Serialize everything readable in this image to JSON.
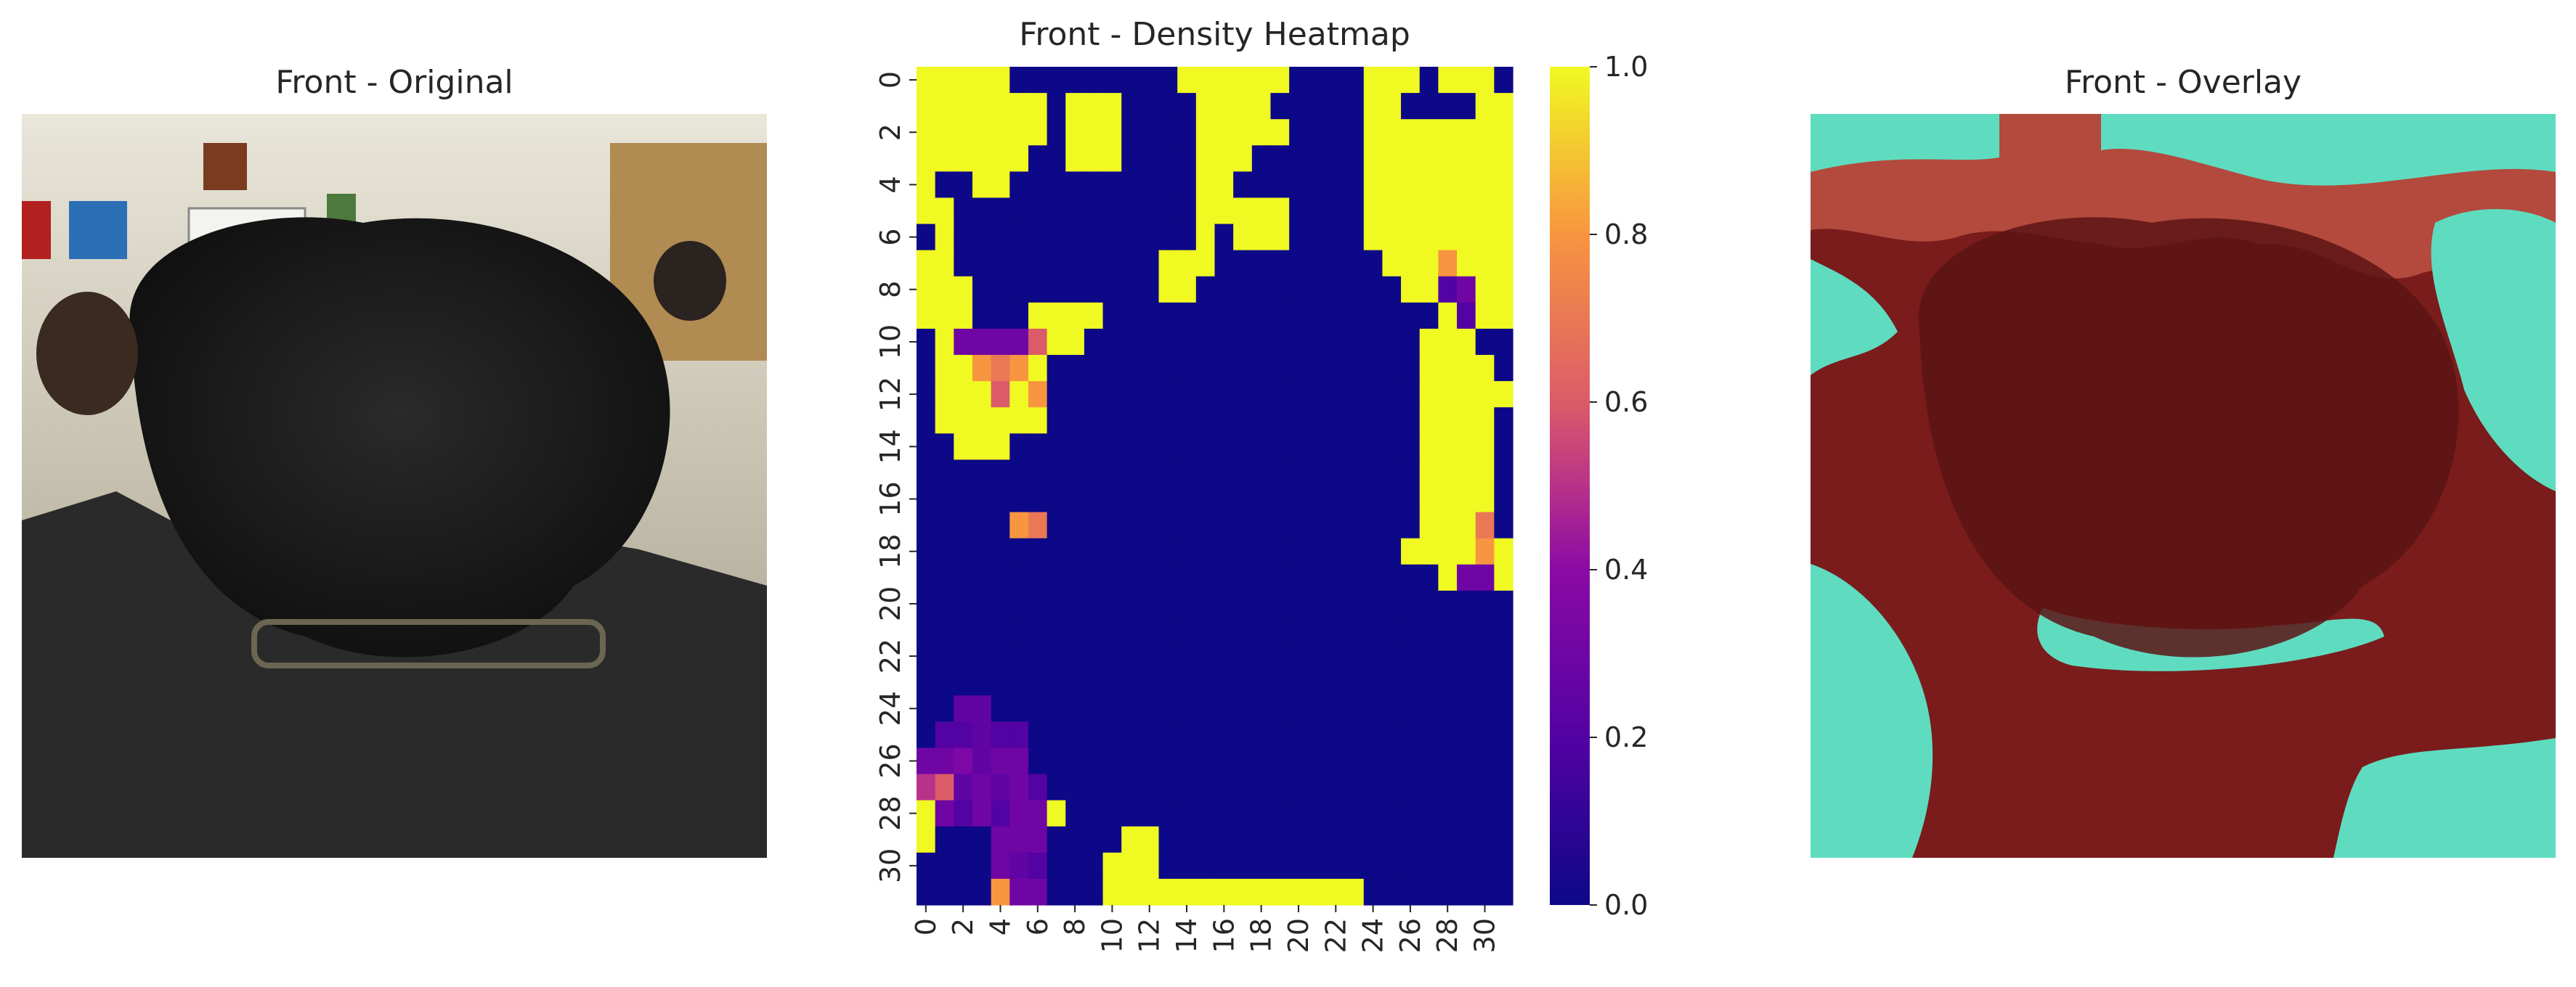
{
  "panels": {
    "original": {
      "title": "Front - Original"
    },
    "heatmap": {
      "title": "Front - Density Heatmap"
    },
    "overlay": {
      "title": "Front - Overlay"
    }
  },
  "chart_data": {
    "type": "heatmap",
    "title": "Front - Density Heatmap",
    "rows": 32,
    "cols": 32,
    "colormap": "plasma",
    "x_tick_labels": [
      "0",
      "2",
      "4",
      "6",
      "8",
      "10",
      "12",
      "14",
      "16",
      "18",
      "20",
      "22",
      "24",
      "26",
      "28",
      "30"
    ],
    "y_tick_labels": [
      "0",
      "2",
      "4",
      "6",
      "8",
      "10",
      "12",
      "14",
      "16",
      "18",
      "20",
      "22",
      "24",
      "26",
      "28",
      "30"
    ],
    "colorbar_range": [
      0.0,
      1.0
    ],
    "colorbar_ticks": [
      "0.0",
      "0.2",
      "0.4",
      "0.6",
      "0.8",
      "1.0"
    ],
    "values": [
      [
        1,
        1,
        1,
        1,
        1,
        0,
        0,
        0,
        0,
        0,
        0,
        0,
        0,
        0,
        1,
        1,
        1,
        1,
        1,
        1,
        0,
        0,
        0,
        0,
        1,
        1,
        1,
        0,
        1,
        1,
        1,
        0
      ],
      [
        1,
        1,
        1,
        1,
        1,
        1,
        1,
        0,
        1,
        1,
        1,
        0,
        0,
        0,
        0,
        1,
        1,
        1,
        1,
        0,
        0,
        0,
        0,
        0,
        1,
        1,
        0,
        0,
        0,
        0,
        1,
        1
      ],
      [
        1,
        1,
        1,
        1,
        1,
        1,
        1,
        0,
        1,
        1,
        1,
        0,
        0,
        0,
        0,
        1,
        1,
        1,
        1,
        1,
        0,
        0,
        0,
        0,
        1,
        1,
        1,
        1,
        1,
        1,
        1,
        1
      ],
      [
        1,
        1,
        1,
        1,
        1,
        1,
        0,
        0,
        1,
        1,
        1,
        0,
        0,
        0,
        0,
        1,
        1,
        1,
        0,
        0,
        0,
        0,
        0,
        0,
        1,
        1,
        1,
        1,
        1,
        1,
        1,
        1
      ],
      [
        1,
        0,
        0,
        1,
        1,
        0,
        0,
        0,
        0,
        0,
        0,
        0,
        0,
        0,
        0,
        1,
        1,
        0,
        0,
        0,
        0,
        0,
        0,
        0,
        1,
        1,
        1,
        1,
        1,
        1,
        1,
        1
      ],
      [
        1,
        1,
        0,
        0,
        0,
        0,
        0,
        0,
        0,
        0,
        0,
        0,
        0,
        0,
        0,
        1,
        1,
        1,
        1,
        1,
        0,
        0,
        0,
        0,
        1,
        1,
        1,
        1,
        1,
        1,
        1,
        1
      ],
      [
        0,
        1,
        0,
        0,
        0,
        0,
        0,
        0,
        0,
        0,
        0,
        0,
        0,
        0,
        0,
        1,
        0,
        1,
        1,
        1,
        0,
        0,
        0,
        0,
        1,
        1,
        1,
        1,
        1,
        1,
        1,
        1
      ],
      [
        1,
        1,
        0,
        0,
        0,
        0,
        0,
        0,
        0,
        0,
        0,
        0,
        0,
        1,
        1,
        1,
        0,
        0,
        0,
        0,
        0,
        0,
        0,
        0,
        0,
        1,
        1,
        1,
        0.8,
        1,
        1,
        1
      ],
      [
        1,
        1,
        1,
        0,
        0,
        0,
        0,
        0,
        0,
        0,
        0,
        0,
        0,
        1,
        1,
        0,
        0,
        0,
        0,
        0,
        0,
        0,
        0,
        0,
        0,
        0,
        1,
        1,
        0.2,
        0.3,
        1,
        1
      ],
      [
        1,
        1,
        1,
        0,
        0,
        0,
        1,
        1,
        1,
        1,
        0,
        0,
        0,
        0,
        0,
        0,
        0,
        0,
        0,
        0,
        0,
        0,
        0,
        0,
        0,
        0,
        0,
        0,
        1,
        0.2,
        1,
        1
      ],
      [
        0,
        1,
        0.3,
        0.3,
        0.3,
        0.3,
        0.6,
        1,
        1,
        0,
        0,
        0,
        0,
        0,
        0,
        0,
        0,
        0,
        0,
        0,
        0,
        0,
        0,
        0,
        0,
        0,
        0,
        1,
        1,
        1,
        0,
        0
      ],
      [
        0,
        1,
        1,
        0.8,
        0.7,
        0.8,
        1,
        0,
        0,
        0,
        0,
        0,
        0,
        0,
        0,
        0,
        0,
        0,
        0,
        0,
        0,
        0,
        0,
        0,
        0,
        0,
        0,
        1,
        1,
        1,
        1,
        0
      ],
      [
        0,
        1,
        1,
        1,
        0.6,
        1,
        0.8,
        0,
        0,
        0,
        0,
        0,
        0,
        0,
        0,
        0,
        0,
        0,
        0,
        0,
        0,
        0,
        0,
        0,
        0,
        0,
        0,
        1,
        1,
        1,
        1,
        1
      ],
      [
        0,
        1,
        1,
        1,
        1,
        1,
        1,
        0,
        0,
        0,
        0,
        0,
        0,
        0,
        0,
        0,
        0,
        0,
        0,
        0,
        0,
        0,
        0,
        0,
        0,
        0,
        0,
        1,
        1,
        1,
        1,
        0
      ],
      [
        0,
        0,
        1,
        1,
        1,
        0,
        0,
        0,
        0,
        0,
        0,
        0,
        0,
        0,
        0,
        0,
        0,
        0,
        0,
        0,
        0,
        0,
        0,
        0,
        0,
        0,
        0,
        1,
        1,
        1,
        1,
        0
      ],
      [
        0,
        0,
        0,
        0,
        0,
        0,
        0,
        0,
        0,
        0,
        0,
        0,
        0,
        0,
        0,
        0,
        0,
        0,
        0,
        0,
        0,
        0,
        0,
        0,
        0,
        0,
        0,
        1,
        1,
        1,
        1,
        0
      ],
      [
        0,
        0,
        0,
        0,
        0,
        0,
        0,
        0,
        0,
        0,
        0,
        0,
        0,
        0,
        0,
        0,
        0,
        0,
        0,
        0,
        0,
        0,
        0,
        0,
        0,
        0,
        0,
        1,
        1,
        1,
        1,
        0
      ],
      [
        0,
        0,
        0,
        0,
        0,
        0.8,
        0.7,
        0,
        0,
        0,
        0,
        0,
        0,
        0,
        0,
        0,
        0,
        0,
        0,
        0,
        0,
        0,
        0,
        0,
        0,
        0,
        0,
        1,
        1,
        1,
        0.7,
        0
      ],
      [
        0,
        0,
        0,
        0,
        0,
        0,
        0,
        0,
        0,
        0,
        0,
        0,
        0,
        0,
        0,
        0,
        0,
        0,
        0,
        0,
        0,
        0,
        0,
        0,
        0,
        0,
        1,
        1,
        1,
        1,
        0.8,
        1
      ],
      [
        0,
        0,
        0,
        0,
        0,
        0,
        0,
        0,
        0,
        0,
        0,
        0,
        0,
        0,
        0,
        0,
        0,
        0,
        0,
        0,
        0,
        0,
        0,
        0,
        0,
        0,
        0,
        0,
        1,
        0.3,
        0.3,
        1
      ],
      [
        0,
        0,
        0,
        0,
        0,
        0,
        0,
        0,
        0,
        0,
        0,
        0,
        0,
        0,
        0,
        0,
        0,
        0,
        0,
        0,
        0,
        0,
        0,
        0,
        0,
        0,
        0,
        0,
        0,
        0,
        0,
        0
      ],
      [
        0,
        0,
        0,
        0,
        0,
        0,
        0,
        0,
        0,
        0,
        0,
        0,
        0,
        0,
        0,
        0,
        0,
        0,
        0,
        0,
        0,
        0,
        0,
        0,
        0,
        0,
        0,
        0,
        0,
        0,
        0,
        0
      ],
      [
        0,
        0,
        0,
        0,
        0,
        0,
        0,
        0,
        0,
        0,
        0,
        0,
        0,
        0,
        0,
        0,
        0,
        0,
        0,
        0,
        0,
        0,
        0,
        0,
        0,
        0,
        0,
        0,
        0,
        0,
        0,
        0
      ],
      [
        0,
        0,
        0,
        0,
        0,
        0,
        0,
        0,
        0,
        0,
        0,
        0,
        0,
        0,
        0,
        0,
        0,
        0,
        0,
        0,
        0,
        0,
        0,
        0,
        0,
        0,
        0,
        0,
        0,
        0,
        0,
        0
      ],
      [
        0,
        0,
        0.25,
        0.25,
        0,
        0,
        0,
        0,
        0,
        0,
        0,
        0,
        0,
        0,
        0,
        0,
        0,
        0,
        0,
        0,
        0,
        0,
        0,
        0,
        0,
        0,
        0,
        0,
        0,
        0,
        0,
        0
      ],
      [
        0,
        0.2,
        0.2,
        0.25,
        0.2,
        0.2,
        0,
        0,
        0,
        0,
        0,
        0,
        0,
        0,
        0,
        0,
        0,
        0,
        0,
        0,
        0,
        0,
        0,
        0,
        0,
        0,
        0,
        0,
        0,
        0,
        0,
        0
      ],
      [
        0.3,
        0.3,
        0.35,
        0.25,
        0.3,
        0.3,
        0,
        0,
        0,
        0,
        0,
        0,
        0,
        0,
        0,
        0,
        0,
        0,
        0,
        0,
        0,
        0,
        0,
        0,
        0,
        0,
        0,
        0,
        0,
        0,
        0,
        0
      ],
      [
        0.5,
        0.6,
        0.25,
        0.3,
        0.25,
        0.3,
        0.2,
        0,
        0,
        0,
        0,
        0,
        0,
        0,
        0,
        0,
        0,
        0,
        0,
        0,
        0,
        0,
        0,
        0,
        0,
        0,
        0,
        0,
        0,
        0,
        0,
        0
      ],
      [
        1,
        0.3,
        0.2,
        0.3,
        0.2,
        0.3,
        0.3,
        1,
        0,
        0,
        0,
        0,
        0,
        0,
        0,
        0,
        0,
        0,
        0,
        0,
        0,
        0,
        0,
        0,
        0,
        0,
        0,
        0,
        0,
        0,
        0,
        0
      ],
      [
        1,
        0,
        0,
        0,
        0.3,
        0.3,
        0.3,
        0,
        0,
        0,
        0,
        1,
        1,
        0,
        0,
        0,
        0,
        0,
        0,
        0,
        0,
        0,
        0,
        0,
        0,
        0,
        0,
        0,
        0,
        0,
        0,
        0
      ],
      [
        0,
        0,
        0,
        0,
        0.3,
        0.25,
        0.2,
        0,
        0,
        0,
        1,
        1,
        1,
        0,
        0,
        0,
        0,
        0,
        0,
        0,
        0,
        0,
        0,
        0,
        0,
        0,
        0,
        0,
        0,
        0,
        0,
        0
      ],
      [
        0,
        0,
        0,
        0,
        0.8,
        0.3,
        0.3,
        0,
        0,
        0,
        1,
        1,
        1,
        1,
        1,
        1,
        1,
        1,
        1,
        1,
        1,
        1,
        1,
        1,
        0,
        0,
        0,
        0,
        0,
        0,
        0,
        0
      ]
    ]
  }
}
